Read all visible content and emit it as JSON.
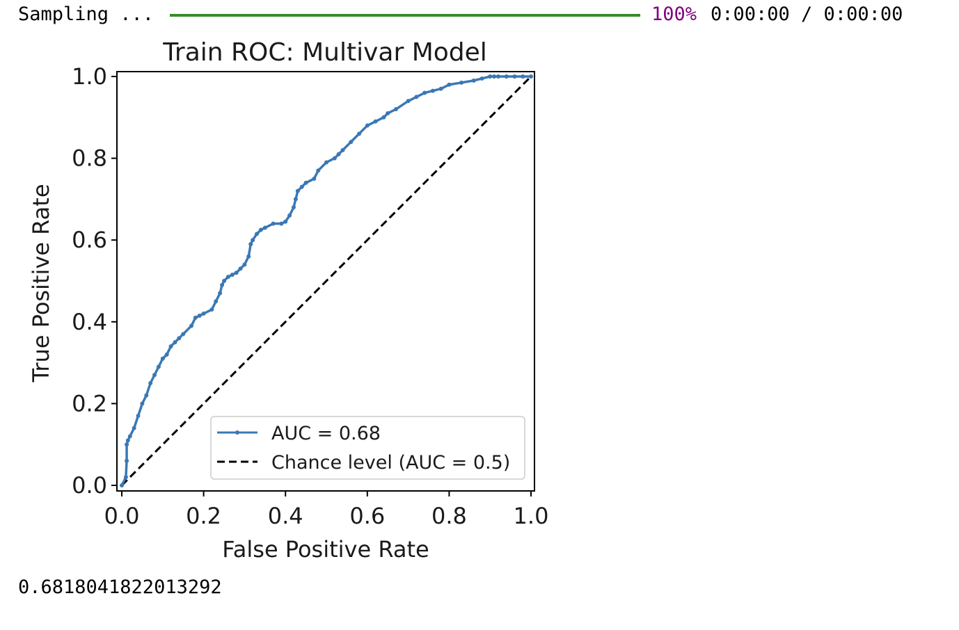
{
  "progress": {
    "label": "Sampling ...",
    "percent_text": "100%",
    "time_text": "0:00:00 / 0:00:00",
    "fraction": 1.0,
    "bar_color": "#3a8a2a",
    "percent_color": "#800080"
  },
  "chart_data": {
    "type": "line",
    "title": "Train ROC: Multivar Model",
    "xlabel": "False Positive Rate",
    "ylabel": "True Positive Rate",
    "xlim": [
      0.0,
      1.0
    ],
    "ylim": [
      0.0,
      1.0
    ],
    "xticks": [
      "0.0",
      "0.2",
      "0.4",
      "0.6",
      "0.8",
      "1.0"
    ],
    "yticks": [
      "0.0",
      "0.2",
      "0.4",
      "0.6",
      "0.8",
      "1.0"
    ],
    "grid": false,
    "legend_position": "lower-right",
    "series": [
      {
        "name": "AUC = 0.68",
        "color": "#3a78b5",
        "style": "solid-with-markers",
        "x": [
          0.0,
          0.01,
          0.012,
          0.012,
          0.015,
          0.02,
          0.03,
          0.04,
          0.05,
          0.06,
          0.07,
          0.08,
          0.09,
          0.1,
          0.11,
          0.12,
          0.13,
          0.14,
          0.15,
          0.17,
          0.18,
          0.19,
          0.2,
          0.22,
          0.23,
          0.24,
          0.245,
          0.25,
          0.26,
          0.27,
          0.28,
          0.29,
          0.3,
          0.31,
          0.315,
          0.32,
          0.33,
          0.34,
          0.35,
          0.37,
          0.39,
          0.4,
          0.41,
          0.42,
          0.425,
          0.43,
          0.44,
          0.45,
          0.47,
          0.48,
          0.5,
          0.52,
          0.53,
          0.54,
          0.56,
          0.58,
          0.6,
          0.62,
          0.64,
          0.65,
          0.67,
          0.7,
          0.72,
          0.74,
          0.76,
          0.78,
          0.8,
          0.83,
          0.86,
          0.88,
          0.9,
          0.91,
          0.92,
          0.94,
          0.96,
          0.98,
          1.0
        ],
        "y": [
          0.0,
          0.02,
          0.06,
          0.1,
          0.11,
          0.12,
          0.14,
          0.17,
          0.2,
          0.22,
          0.25,
          0.27,
          0.29,
          0.31,
          0.32,
          0.34,
          0.35,
          0.36,
          0.37,
          0.39,
          0.41,
          0.415,
          0.42,
          0.43,
          0.45,
          0.47,
          0.49,
          0.5,
          0.51,
          0.515,
          0.52,
          0.53,
          0.54,
          0.56,
          0.59,
          0.6,
          0.615,
          0.625,
          0.63,
          0.64,
          0.64,
          0.645,
          0.66,
          0.68,
          0.7,
          0.72,
          0.73,
          0.74,
          0.75,
          0.77,
          0.79,
          0.8,
          0.81,
          0.82,
          0.84,
          0.86,
          0.88,
          0.89,
          0.9,
          0.91,
          0.92,
          0.94,
          0.95,
          0.96,
          0.965,
          0.97,
          0.98,
          0.985,
          0.99,
          0.995,
          1.0,
          1.0,
          1.0,
          1.0,
          1.0,
          1.0,
          1.0
        ]
      },
      {
        "name": "Chance level (AUC = 0.5)",
        "color": "#000000",
        "style": "dashed",
        "x": [
          0.0,
          1.0
        ],
        "y": [
          0.0,
          1.0
        ]
      }
    ]
  },
  "output": {
    "value": "0.6818041822013292"
  }
}
